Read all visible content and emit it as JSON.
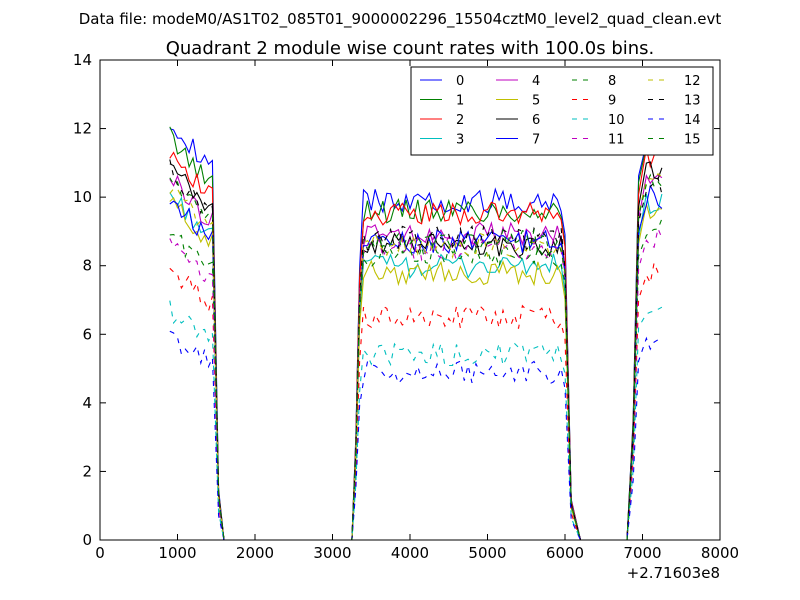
{
  "chart_data": {
    "type": "line",
    "suptitle": "Data file: modeM0/AS1T02_085T01_9000002296_15504cztM0_level2_quad_clean.evt",
    "title": "Quadrant 2 module wise count rates with 100.0s bins.",
    "xlabel": "",
    "ylabel": "",
    "x_offset_label": "+2.71603e8",
    "xlim": [
      0,
      8000
    ],
    "ylim": [
      0,
      14
    ],
    "x_ticks": [
      "0",
      "1000",
      "2000",
      "3000",
      "4000",
      "5000",
      "6000",
      "7000",
      "8000"
    ],
    "y_ticks": [
      "0",
      "2",
      "4",
      "6",
      "8",
      "10",
      "12",
      "14"
    ],
    "grid": false,
    "legend": {
      "position": "top-right",
      "columns": 4
    },
    "segments": [
      {
        "x_start": 900,
        "x_end": 1400,
        "tail": [
          [
            1450,
            0.9
          ],
          [
            1530,
            0.12
          ],
          [
            1600,
            0
          ]
        ]
      },
      {
        "x_start": 3400,
        "x_end": 5950,
        "head": [
          [
            3250,
            0
          ],
          [
            3300,
            0.3
          ],
          [
            3350,
            0.8
          ]
        ],
        "tail": [
          [
            6000,
            0.9
          ],
          [
            6080,
            0.12
          ],
          [
            6200,
            0
          ]
        ]
      },
      {
        "x_start": 7050,
        "x_end": 7250,
        "head": [
          [
            6800,
            0
          ],
          [
            6880,
            0.3
          ],
          [
            6950,
            0.9
          ]
        ],
        "tail": []
      }
    ],
    "zero_runs": [
      [
        1600,
        3250
      ],
      [
        6200,
        6800
      ]
    ],
    "series": [
      {
        "name": "0",
        "color": "#0000ff",
        "dash": "solid",
        "levels": [
          12.3,
          9.9,
          11.8
        ]
      },
      {
        "name": "1",
        "color": "#008000",
        "dash": "solid",
        "levels": [
          11.8,
          9.6,
          11.6
        ]
      },
      {
        "name": "2",
        "color": "#ff0000",
        "dash": "solid",
        "levels": [
          11.4,
          9.5,
          11.2
        ]
      },
      {
        "name": "3",
        "color": "#00bfbf",
        "dash": "solid",
        "levels": [
          10.1,
          8.0,
          9.8
        ]
      },
      {
        "name": "4",
        "color": "#bf00bf",
        "dash": "solid",
        "levels": [
          10.6,
          8.9,
          10.4
        ]
      },
      {
        "name": "5",
        "color": "#bfbf00",
        "dash": "solid",
        "levels": [
          9.9,
          7.8,
          9.6
        ]
      },
      {
        "name": "6",
        "color": "#000000",
        "dash": "solid",
        "levels": [
          10.9,
          8.6,
          10.8
        ]
      },
      {
        "name": "7",
        "color": "#0000ff",
        "dash": "solid",
        "levels": [
          10.0,
          8.7,
          10.0
        ]
      },
      {
        "name": "8",
        "color": "#008000",
        "dash": "dashed",
        "levels": [
          9.0,
          8.3,
          9.2
        ]
      },
      {
        "name": "9",
        "color": "#ff0000",
        "dash": "dashed",
        "levels": [
          7.9,
          6.5,
          7.8
        ]
      },
      {
        "name": "10",
        "color": "#00bfbf",
        "dash": "dashed",
        "levels": [
          6.7,
          5.4,
          6.9
        ]
      },
      {
        "name": "11",
        "color": "#bf00bf",
        "dash": "dashed",
        "levels": [
          8.6,
          8.5,
          8.8
        ]
      },
      {
        "name": "12",
        "color": "#bfbf00",
        "dash": "dashed",
        "levels": [
          10.3,
          8.6,
          10.6
        ]
      },
      {
        "name": "13",
        "color": "#000000",
        "dash": "dashed",
        "levels": [
          10.8,
          8.8,
          10.3
        ]
      },
      {
        "name": "14",
        "color": "#0000ff",
        "dash": "dashed",
        "levels": [
          5.9,
          4.9,
          5.8
        ]
      },
      {
        "name": "15",
        "color": "#008000",
        "dash": "dashed",
        "levels": [
          10.6,
          8.7,
          10.5
        ]
      }
    ]
  }
}
